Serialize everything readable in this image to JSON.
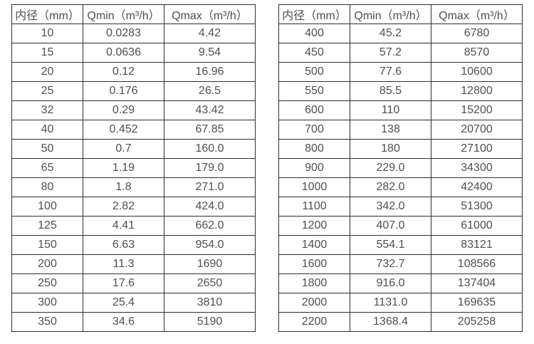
{
  "page": {
    "background": "#ffffff",
    "border_color": "#2e2e2e",
    "text_color": "#4f4f4f"
  },
  "tables": [
    {
      "name": "flow-table-small-diameters",
      "headers": [
        "内径（mm）",
        "Qmin（m³/h）",
        "Qmax（m³/h）"
      ],
      "rows": [
        [
          "10",
          "0.0283",
          "4.42"
        ],
        [
          "15",
          "0.0636",
          "9.54"
        ],
        [
          "20",
          "0.12",
          "16.96"
        ],
        [
          "25",
          "0.176",
          "26.5"
        ],
        [
          "32",
          "0.29",
          "43.42"
        ],
        [
          "40",
          "0.452",
          "67.85"
        ],
        [
          "50",
          "0.7",
          "160.0"
        ],
        [
          "65",
          "1.19",
          "179.0"
        ],
        [
          "80",
          "1.8",
          "271.0"
        ],
        [
          "100",
          "2.82",
          "424.0"
        ],
        [
          "125",
          "4.41",
          "662.0"
        ],
        [
          "150",
          "6.63",
          "954.0"
        ],
        [
          "200",
          "11.3",
          "1690"
        ],
        [
          "250",
          "17.6",
          "2650"
        ],
        [
          "300",
          "25.4",
          "3810"
        ],
        [
          "350",
          "34.6",
          "5190"
        ]
      ]
    },
    {
      "name": "flow-table-large-diameters",
      "headers": [
        "内径（mm）",
        "Qmin（m³/h）",
        "Qmax（m³/h）"
      ],
      "rows": [
        [
          "400",
          "45.2",
          "6780"
        ],
        [
          "450",
          "57.2",
          "8570"
        ],
        [
          "500",
          "77.6",
          "10600"
        ],
        [
          "550",
          "85.5",
          "12800"
        ],
        [
          "600",
          "110",
          "15200"
        ],
        [
          "700",
          "138",
          "20700"
        ],
        [
          "800",
          "180",
          "27100"
        ],
        [
          "900",
          "229.0",
          "34300"
        ],
        [
          "1000",
          "282.0",
          "42400"
        ],
        [
          "1100",
          "342.0",
          "51300"
        ],
        [
          "1200",
          "407.0",
          "61000"
        ],
        [
          "1400",
          "554.1",
          "83121"
        ],
        [
          "1600",
          "732.7",
          "108566"
        ],
        [
          "1800",
          "916.0",
          "137404"
        ],
        [
          "2000",
          "1131.0",
          "169635"
        ],
        [
          "2200",
          "1368.4",
          "205258"
        ]
      ]
    }
  ]
}
